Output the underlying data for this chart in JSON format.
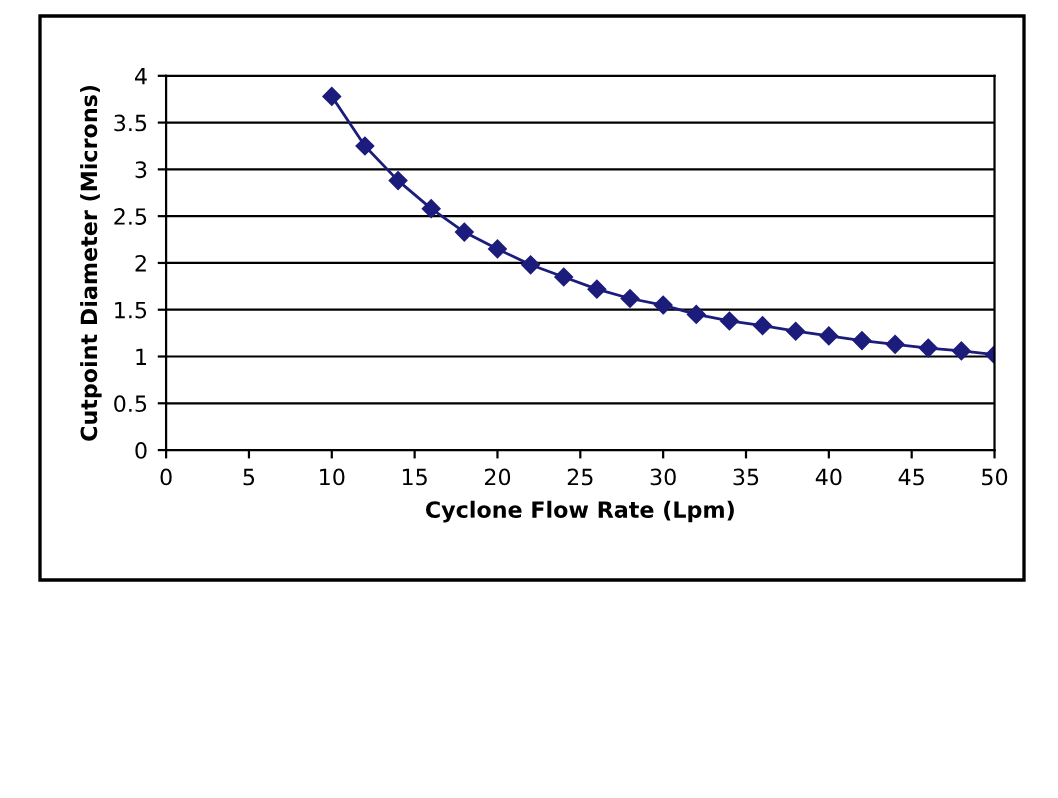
{
  "chart_data": {
    "type": "line",
    "xlabel": "Cyclone Flow Rate (Lpm)",
    "ylabel": "Cutpoint Diameter (Microns)",
    "series": [
      {
        "color": "#1c1c7c",
        "x": [
          10,
          12,
          14,
          16,
          18,
          20,
          22,
          24,
          26,
          28,
          30,
          32,
          34,
          36,
          38,
          40,
          42,
          44,
          46,
          48,
          50
        ],
        "values": [
          3.78,
          3.25,
          2.88,
          2.58,
          2.33,
          2.15,
          1.98,
          1.85,
          1.72,
          1.62,
          1.55,
          1.45,
          1.38,
          1.33,
          1.27,
          1.22,
          1.17,
          1.13,
          1.09,
          1.06,
          1.02
        ]
      }
    ],
    "xlim": [
      0,
      50
    ],
    "xticks": [
      0,
      5,
      10,
      15,
      20,
      25,
      30,
      35,
      40,
      45,
      50
    ],
    "ylim": [
      0,
      4
    ],
    "yticks": [
      0,
      0.5,
      1,
      1.5,
      2,
      2.5,
      3,
      3.5,
      4
    ],
    "grid": "y",
    "marker": "diamond",
    "line_style": "solid"
  }
}
